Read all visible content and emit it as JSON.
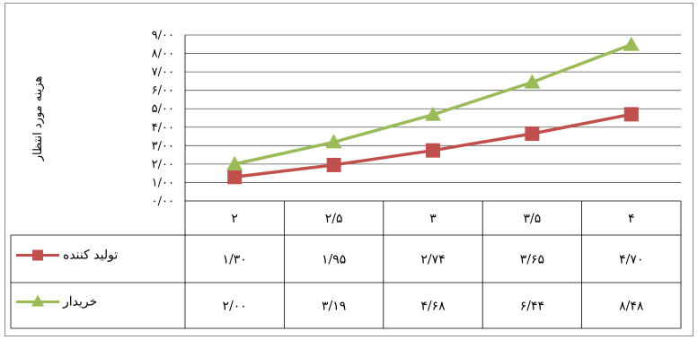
{
  "chart_data": {
    "type": "line",
    "ylabel": "هزینه مورد انتظار",
    "categories": [
      "۲",
      "۲/۵",
      "۳",
      "۳/۵",
      "۴"
    ],
    "y_ticks": [
      "۰/۰۰",
      "۱/۰۰",
      "۲/۰۰",
      "۳/۰۰",
      "۴/۰۰",
      "۵/۰۰",
      "۶/۰۰",
      "۷/۰۰",
      "۸/۰۰",
      "۹/۰۰"
    ],
    "ylim": [
      0,
      9
    ],
    "grid": true,
    "legend_placement": "data-table",
    "series": [
      {
        "name": "تولید کننده",
        "color": "#c0504d",
        "marker": "square",
        "values": [
          1.3,
          1.95,
          2.74,
          3.65,
          4.7
        ],
        "labels": [
          "۱/۳۰",
          "۱/۹۵",
          "۲/۷۴",
          "۳/۶۵",
          "۴/۷۰"
        ]
      },
      {
        "name": "خریدار",
        "color": "#9bbb59",
        "marker": "triangle",
        "values": [
          2.0,
          3.19,
          4.68,
          6.44,
          8.48
        ],
        "labels": [
          "۲/۰۰",
          "۳/۱۹",
          "۴/۶۸",
          "۶/۴۴",
          "۸/۴۸"
        ]
      }
    ]
  }
}
